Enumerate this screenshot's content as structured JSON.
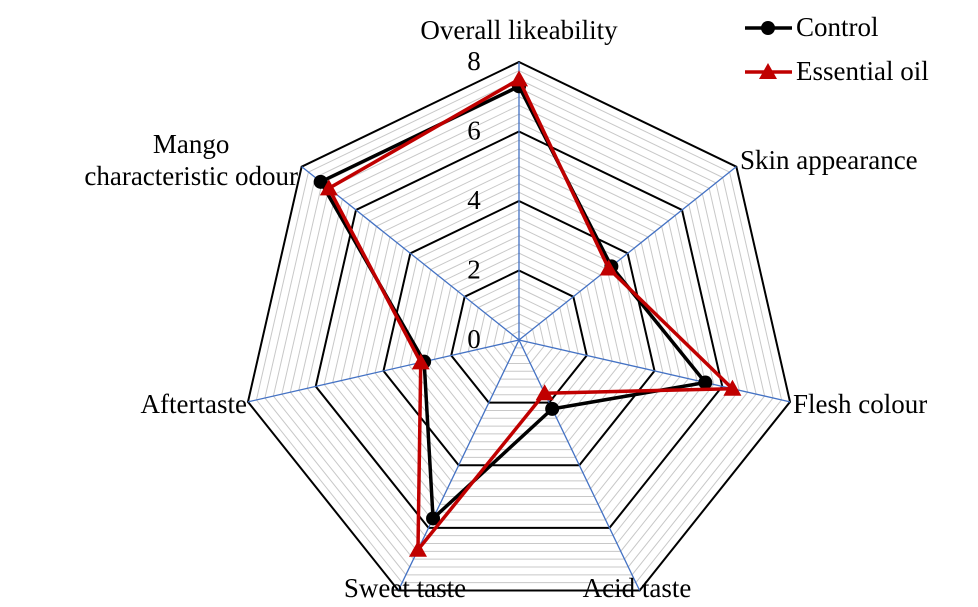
{
  "chart_data": {
    "type": "radar",
    "categories": [
      "Overall likeability",
      "Skin appearance",
      "Flesh colour",
      "Acid taste",
      "Sweet taste",
      "Aftertaste",
      "Mango\ncharacteristic odour"
    ],
    "series": [
      {
        "name": "Control",
        "color": "#000000",
        "marker": "circle",
        "values": [
          7.3,
          3.4,
          5.5,
          2.2,
          5.7,
          2.8,
          7.3
        ]
      },
      {
        "name": "Essential oil",
        "color": "#c00000",
        "marker": "triangle",
        "values": [
          7.5,
          3.3,
          6.3,
          1.7,
          6.7,
          2.9,
          7.0
        ]
      }
    ],
    "rlim": [
      0,
      8
    ],
    "rticks": [
      0,
      2,
      4,
      6,
      8
    ],
    "minor_grid_step": 0.25,
    "axis_color": "#4472c4",
    "legend": "upper right"
  }
}
